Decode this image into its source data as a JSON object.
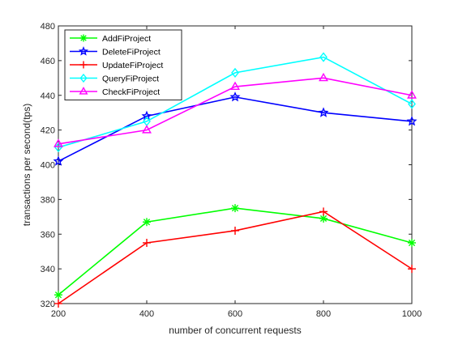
{
  "chart_data": {
    "type": "line",
    "title": "",
    "xlabel": "number of concurrent requests",
    "ylabel": "transactions per second(tps)",
    "x": [
      200,
      400,
      600,
      800,
      1000
    ],
    "xlim": [
      200,
      1000
    ],
    "ylim": [
      320,
      480
    ],
    "xticks": [
      "200",
      "400",
      "600",
      "800",
      "1000"
    ],
    "yticks": [
      "320",
      "340",
      "360",
      "380",
      "400",
      "420",
      "440",
      "460",
      "480"
    ],
    "grid": false,
    "legend_position": "top-left",
    "series": [
      {
        "name": "AddFiProject",
        "color": "#00ff00",
        "marker": "asterisk",
        "values": [
          325,
          367,
          375,
          369,
          355
        ]
      },
      {
        "name": "DeleteFiProject",
        "color": "#0000ff",
        "marker": "star",
        "values": [
          402,
          428,
          439,
          430,
          425
        ]
      },
      {
        "name": "UpdateFiProject",
        "color": "#ff0000",
        "marker": "plus",
        "values": [
          320,
          355,
          362,
          373,
          340
        ]
      },
      {
        "name": "QueryFiProject",
        "color": "#00ffff",
        "marker": "diamond",
        "values": [
          410,
          425,
          453,
          462,
          435
        ]
      },
      {
        "name": "CheckFiProject",
        "color": "#ff00ff",
        "marker": "triangle",
        "values": [
          412,
          420,
          445,
          450,
          440
        ]
      }
    ]
  }
}
